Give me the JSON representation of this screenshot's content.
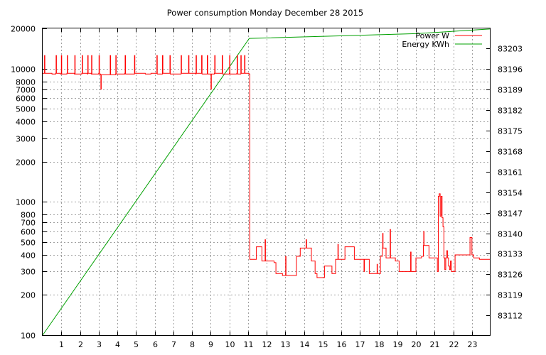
{
  "chart_data": {
    "type": "line",
    "title": "Power consumption Monday December 28 2015",
    "x": {
      "range": [
        0,
        24
      ],
      "ticks": [
        1,
        2,
        3,
        4,
        5,
        6,
        7,
        8,
        9,
        10,
        11,
        12,
        13,
        14,
        15,
        16,
        17,
        18,
        19,
        20,
        21,
        22,
        23
      ]
    },
    "y_left": {
      "scale": "log",
      "range": [
        100,
        20000
      ],
      "ticks": [
        100,
        200,
        300,
        400,
        500,
        600,
        700,
        800,
        1000,
        2000,
        3000,
        4000,
        5000,
        6000,
        7000,
        8000,
        10000,
        20000
      ],
      "grid_ticks": [
        200,
        300,
        400,
        500,
        600,
        700,
        800,
        1000,
        2000,
        3000,
        4000,
        5000,
        6000,
        7000,
        8000,
        10000
      ]
    },
    "y_right": {
      "scale": "linear",
      "range": [
        83105.3,
        83209.8
      ],
      "ticks": [
        83112,
        83119,
        83126,
        83133,
        83140,
        83147,
        83154,
        83161,
        83168,
        83175,
        83182,
        83189,
        83196,
        83203
      ]
    },
    "grid": true,
    "legend_position": "top-right",
    "series": [
      {
        "name": "Power W",
        "axis": "left",
        "color": "#ff0000",
        "points": [
          [
            0.0,
            9200
          ],
          [
            0.1,
            12500
          ],
          [
            0.12,
            9200
          ],
          [
            0.3,
            9200
          ],
          [
            0.5,
            9100
          ],
          [
            0.7,
            9200
          ],
          [
            0.72,
            12500
          ],
          [
            0.74,
            9200
          ],
          [
            0.95,
            9100
          ],
          [
            1.0,
            12500
          ],
          [
            1.02,
            9100
          ],
          [
            1.3,
            9200
          ],
          [
            1.32,
            12500
          ],
          [
            1.34,
            9200
          ],
          [
            1.7,
            9100
          ],
          [
            1.72,
            12500
          ],
          [
            1.74,
            9100
          ],
          [
            2.1,
            9200
          ],
          [
            2.12,
            12500
          ],
          [
            2.14,
            9200
          ],
          [
            2.4,
            9100
          ],
          [
            2.42,
            12500
          ],
          [
            2.44,
            9200
          ],
          [
            2.6,
            9100
          ],
          [
            2.62,
            12500
          ],
          [
            2.64,
            9100
          ],
          [
            3.0,
            9200
          ],
          [
            3.02,
            12500
          ],
          [
            3.04,
            9100
          ],
          [
            3.1,
            9000
          ],
          [
            3.12,
            7000
          ],
          [
            3.14,
            9000
          ],
          [
            3.6,
            9000
          ],
          [
            3.62,
            12500
          ],
          [
            3.64,
            9000
          ],
          [
            3.9,
            9100
          ],
          [
            3.92,
            12500
          ],
          [
            3.94,
            9100
          ],
          [
            4.4,
            9200
          ],
          [
            4.42,
            12500
          ],
          [
            4.44,
            9100
          ],
          [
            4.9,
            9100
          ],
          [
            4.92,
            12500
          ],
          [
            4.94,
            9200
          ],
          [
            5.3,
            9200
          ],
          [
            5.5,
            9100
          ],
          [
            5.8,
            9200
          ],
          [
            6.1,
            9200
          ],
          [
            6.12,
            12500
          ],
          [
            6.14,
            9100
          ],
          [
            6.4,
            9100
          ],
          [
            6.42,
            12500
          ],
          [
            6.44,
            9200
          ],
          [
            6.8,
            9200
          ],
          [
            6.82,
            12500
          ],
          [
            6.84,
            9100
          ],
          [
            7.4,
            9100
          ],
          [
            7.42,
            12500
          ],
          [
            7.44,
            9200
          ],
          [
            7.8,
            9200
          ],
          [
            7.82,
            12500
          ],
          [
            7.84,
            9200
          ],
          [
            8.2,
            9100
          ],
          [
            8.22,
            12500
          ],
          [
            8.24,
            9200
          ],
          [
            8.5,
            9200
          ],
          [
            8.52,
            12500
          ],
          [
            8.54,
            9100
          ],
          [
            8.8,
            9100
          ],
          [
            8.82,
            12500
          ],
          [
            8.84,
            9100
          ],
          [
            9.0,
            9100
          ],
          [
            9.02,
            7000
          ],
          [
            9.04,
            9100
          ],
          [
            9.2,
            9200
          ],
          [
            9.22,
            12500
          ],
          [
            9.24,
            9200
          ],
          [
            9.6,
            9200
          ],
          [
            9.62,
            12500
          ],
          [
            9.64,
            9100
          ],
          [
            10.0,
            9200
          ],
          [
            10.02,
            12500
          ],
          [
            10.04,
            9100
          ],
          [
            10.4,
            9200
          ],
          [
            10.42,
            12500
          ],
          [
            10.44,
            9100
          ],
          [
            10.6,
            9100
          ],
          [
            10.62,
            12500
          ],
          [
            10.64,
            9200
          ],
          [
            10.8,
            9200
          ],
          [
            10.82,
            12500
          ],
          [
            10.84,
            9200
          ],
          [
            11.0,
            9200
          ],
          [
            11.05,
            9100
          ],
          [
            11.1,
            370
          ],
          [
            11.4,
            370
          ],
          [
            11.45,
            460
          ],
          [
            11.7,
            460
          ],
          [
            11.75,
            360
          ],
          [
            11.9,
            360
          ],
          [
            11.92,
            520
          ],
          [
            11.94,
            360
          ],
          [
            12.2,
            360
          ],
          [
            12.4,
            350
          ],
          [
            12.5,
            290
          ],
          [
            12.8,
            290
          ],
          [
            12.85,
            280
          ],
          [
            13.0,
            280
          ],
          [
            13.02,
            390
          ],
          [
            13.04,
            280
          ],
          [
            13.4,
            280
          ],
          [
            13.6,
            390
          ],
          [
            13.8,
            450
          ],
          [
            14.1,
            450
          ],
          [
            14.12,
            520
          ],
          [
            14.14,
            450
          ],
          [
            14.3,
            450
          ],
          [
            14.4,
            360
          ],
          [
            14.6,
            290
          ],
          [
            14.7,
            270
          ],
          [
            15.0,
            270
          ],
          [
            15.1,
            330
          ],
          [
            15.4,
            330
          ],
          [
            15.5,
            290
          ],
          [
            15.6,
            290
          ],
          [
            15.7,
            370
          ],
          [
            15.8,
            370
          ],
          [
            15.82,
            480
          ],
          [
            15.84,
            370
          ],
          [
            16.1,
            370
          ],
          [
            16.2,
            460
          ],
          [
            16.6,
            460
          ],
          [
            16.7,
            370
          ],
          [
            17.2,
            370
          ],
          [
            17.22,
            300
          ],
          [
            17.24,
            370
          ],
          [
            17.4,
            370
          ],
          [
            17.5,
            290
          ],
          [
            17.9,
            290
          ],
          [
            17.92,
            340
          ],
          [
            17.94,
            290
          ],
          [
            18.0,
            290
          ],
          [
            18.1,
            390
          ],
          [
            18.2,
            450
          ],
          [
            18.22,
            580
          ],
          [
            18.24,
            450
          ],
          [
            18.3,
            450
          ],
          [
            18.4,
            380
          ],
          [
            18.6,
            380
          ],
          [
            18.62,
            620
          ],
          [
            18.64,
            380
          ],
          [
            18.8,
            380
          ],
          [
            18.9,
            360
          ],
          [
            19.1,
            300
          ],
          [
            19.4,
            300
          ],
          [
            19.7,
            300
          ],
          [
            19.72,
            420
          ],
          [
            19.74,
            300
          ],
          [
            19.9,
            300
          ],
          [
            20.0,
            380
          ],
          [
            20.2,
            380
          ],
          [
            20.3,
            390
          ],
          [
            20.4,
            470
          ],
          [
            20.42,
            600
          ],
          [
            20.44,
            470
          ],
          [
            20.6,
            470
          ],
          [
            20.7,
            380
          ],
          [
            20.9,
            380
          ],
          [
            21.1,
            380
          ],
          [
            21.15,
            300
          ],
          [
            21.2,
            1100
          ],
          [
            21.25,
            1150
          ],
          [
            21.3,
            780
          ],
          [
            21.35,
            1100
          ],
          [
            21.4,
            760
          ],
          [
            21.45,
            650
          ],
          [
            21.5,
            380
          ],
          [
            21.55,
            310
          ],
          [
            21.6,
            380
          ],
          [
            21.65,
            430
          ],
          [
            21.7,
            380
          ],
          [
            21.75,
            330
          ],
          [
            21.8,
            310
          ],
          [
            21.85,
            360
          ],
          [
            21.9,
            300
          ],
          [
            22.0,
            300
          ],
          [
            22.1,
            400
          ],
          [
            22.5,
            400
          ],
          [
            22.7,
            400
          ],
          [
            22.8,
            400
          ],
          [
            22.9,
            540
          ],
          [
            23.0,
            400
          ],
          [
            23.1,
            380
          ],
          [
            23.4,
            370
          ],
          [
            24.0,
            370
          ]
        ]
      },
      {
        "name": "Energy KWh",
        "axis": "right",
        "color": "#00a000",
        "points": [
          [
            0.0,
            83105.3
          ],
          [
            11.07,
            83206.4
          ],
          [
            20.0,
            83208.0
          ],
          [
            24.0,
            83209.6
          ]
        ]
      }
    ]
  }
}
